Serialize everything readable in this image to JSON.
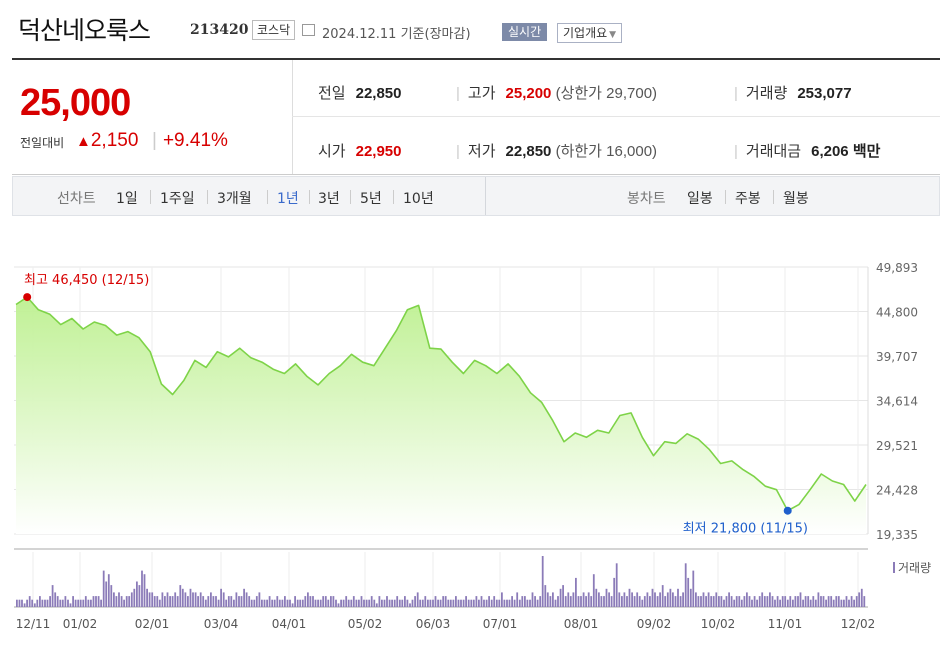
{
  "header": {
    "company_name": "덕산네오룩스",
    "stock_code": "213420",
    "market": "코스닥",
    "date": "2024.12.11",
    "basis": "기준(장마감)",
    "realtime_label": "실시간",
    "overview_label": "기업개요"
  },
  "quote": {
    "price": "25,000",
    "change_label": "전일대비",
    "change": "2,150",
    "change_pct": "+9.41%",
    "prev_close_label": "전일",
    "prev_close": "22,850",
    "open_label": "시가",
    "open": "22,950",
    "high_label": "고가",
    "high": "25,200",
    "upper_limit_label": "상한가",
    "upper_limit": "29,700",
    "low_label": "저가",
    "low": "22,850",
    "lower_limit_label": "하한가",
    "lower_limit": "16,000",
    "volume_label": "거래량",
    "volume": "253,077",
    "amount_label": "거래대금",
    "amount": "6,206",
    "amount_unit": "백만"
  },
  "line_chart": {
    "label": "선차트",
    "options": [
      "1일",
      "1주일",
      "3개월",
      "1년",
      "3년",
      "5년",
      "10년"
    ],
    "active": "1년"
  },
  "candle_chart": {
    "label": "봉차트",
    "options": [
      "일봉",
      "주봉",
      "월봉"
    ]
  },
  "colors": {
    "up": "#d70000",
    "line": "#7ed348",
    "area_top": "#bdf090",
    "volume": "#8b7bb8",
    "active_tab": "#3a6acb",
    "low_marker": "#1f5fcc"
  },
  "chart_data": {
    "type": "area",
    "y_ticks": [
      "49,893",
      "44,800",
      "39,707",
      "34,614",
      "29,521",
      "24,428",
      "19,335"
    ],
    "ylim": [
      19335,
      49893
    ],
    "x_ticks": [
      "12/11",
      "01/02",
      "02/01",
      "03/04",
      "04/01",
      "05/02",
      "06/03",
      "07/01",
      "08/01",
      "09/02",
      "10/02",
      "11/01",
      "12/02"
    ],
    "max_annotation": {
      "label": "최고",
      "value": "46,450",
      "date": "(12/15)"
    },
    "min_annotation": {
      "label": "최저",
      "value": "21,800",
      "date": "(11/15)"
    },
    "volume_legend": "거래량",
    "series": [
      {
        "values": [
          45600,
          46450,
          45000,
          44500,
          43300,
          44000,
          42800,
          43600,
          43200,
          42100,
          42500,
          41800,
          40200,
          36500,
          35300,
          36900,
          39200,
          38400,
          40200,
          39600,
          40600,
          39500,
          39000,
          38200,
          37700,
          38800,
          37400,
          36400,
          37700,
          38600,
          39900,
          39000,
          38600,
          40600,
          42600,
          45000,
          45500,
          40600,
          40500,
          39000,
          37700,
          39200,
          38600,
          37700,
          38800,
          37400,
          35500,
          34400,
          32300,
          29900,
          30900,
          30400,
          31200,
          30900,
          32900,
          33200,
          30400,
          28300,
          29900,
          29700,
          30800,
          30200,
          29000,
          27400,
          27700,
          26700,
          25900,
          24800,
          24400,
          22000,
          22700,
          24400,
          26200,
          25400,
          25000,
          23100,
          25000
        ]
      }
    ],
    "volume": [
      2,
      2,
      2,
      1,
      2,
      3,
      2,
      1,
      2,
      3,
      2,
      2,
      2,
      3,
      6,
      4,
      3,
      2,
      2,
      3,
      2,
      1,
      3,
      2,
      2,
      2,
      2,
      3,
      2,
      2,
      3,
      3,
      3,
      2,
      10,
      7,
      9,
      6,
      4,
      3,
      4,
      3,
      2,
      3,
      3,
      4,
      5,
      7,
      6,
      10,
      9,
      5,
      4,
      4,
      3,
      3,
      2,
      4,
      3,
      4,
      3,
      3,
      4,
      3,
      6,
      5,
      4,
      3,
      5,
      4,
      4,
      3,
      4,
      3,
      2,
      3,
      4,
      3,
      3,
      2,
      5,
      4,
      2,
      3,
      3,
      2,
      4,
      3,
      3,
      5,
      4,
      3,
      2,
      2,
      3,
      4,
      2,
      2,
      2,
      3,
      2,
      2,
      3,
      2,
      2,
      3,
      2,
      2,
      1,
      3,
      2,
      2,
      2,
      3,
      4,
      3,
      3,
      2,
      2,
      2,
      3,
      3,
      2,
      3,
      3,
      2,
      1,
      2,
      2,
      3,
      2,
      2,
      3,
      2,
      2,
      3,
      2,
      2,
      2,
      3,
      2,
      1,
      3,
      2,
      2,
      3,
      2,
      2,
      2,
      3,
      2,
      2,
      3,
      2,
      1,
      2,
      3,
      4,
      2,
      2,
      3,
      2,
      2,
      2,
      3,
      2,
      2,
      3,
      3,
      2,
      2,
      2,
      3,
      2,
      2,
      2,
      3,
      2,
      2,
      2,
      3,
      2,
      3,
      2,
      2,
      3,
      2,
      3,
      2,
      2,
      4,
      2,
      2,
      2,
      3,
      2,
      4,
      2,
      3,
      3,
      2,
      2,
      4,
      3,
      2,
      3,
      14,
      6,
      4,
      3,
      4,
      2,
      3,
      5,
      6,
      3,
      4,
      3,
      4,
      8,
      3,
      3,
      4,
      3,
      4,
      3,
      9,
      5,
      4,
      3,
      3,
      5,
      4,
      3,
      8,
      12,
      4,
      3,
      4,
      3,
      5,
      4,
      3,
      4,
      3,
      2,
      3,
      4,
      3,
      5,
      4,
      3,
      4,
      6,
      3,
      4,
      5,
      4,
      3,
      5,
      3,
      4,
      12,
      8,
      5,
      10,
      4,
      3,
      3,
      4,
      3,
      4,
      3,
      3,
      4,
      3,
      3,
      2,
      3,
      4,
      3,
      2,
      3,
      3,
      2,
      3,
      4,
      3,
      2,
      3,
      2,
      3,
      4,
      3,
      3,
      4,
      3,
      2,
      3,
      2,
      3,
      3,
      2,
      3,
      2,
      3,
      3,
      4,
      2,
      3,
      3,
      2,
      3,
      2,
      4,
      3,
      3,
      2,
      3,
      3,
      2,
      3,
      3,
      2,
      2,
      3,
      2,
      3,
      2,
      3,
      4,
      5,
      3
    ]
  }
}
